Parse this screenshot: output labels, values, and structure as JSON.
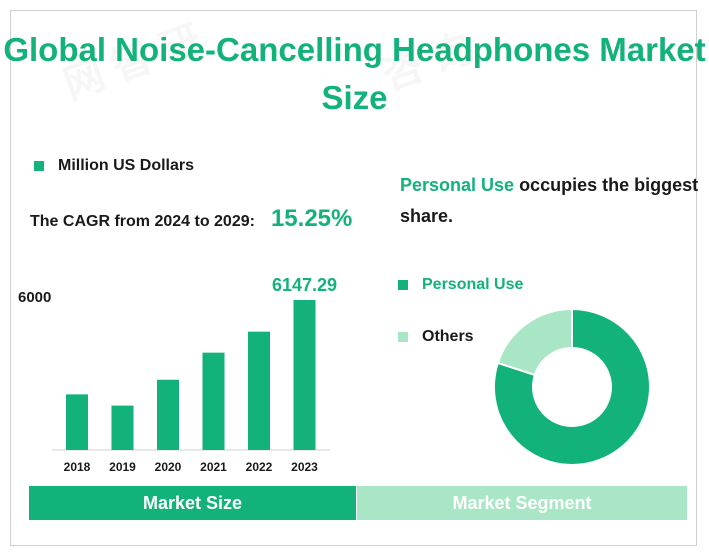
{
  "title": "Global Noise-Cancelling Headphones Market Size",
  "colors": {
    "accent": "#13b27a",
    "light": "#a9e6c5",
    "text": "#1a1a1a"
  },
  "legend_unit": "Million US Dollars",
  "cagr_label": "The CAGR from 2024 to 2029:",
  "cagr_value": "15.25%",
  "y_axis_label": "6000",
  "headline": {
    "highlight": "Personal Use",
    "rest": " occupies the biggest share."
  },
  "tabs": {
    "left": "Market Size",
    "right": "Market Segment"
  },
  "chart_data": [
    {
      "type": "bar",
      "categories": [
        "2018",
        "2019",
        "2020",
        "2021",
        "2022",
        "2023"
      ],
      "values": [
        2280,
        1820,
        2880,
        3990,
        4850,
        6147.29
      ],
      "data_labels": [
        "",
        "",
        "",
        "",
        "",
        "6147.29"
      ],
      "ylim": [
        0,
        6147.29
      ],
      "legend": "Million US Dollars",
      "grid": false
    },
    {
      "type": "pie",
      "donut": true,
      "labels": [
        "Personal Use",
        "Others"
      ],
      "values": [
        80,
        20
      ],
      "colors": [
        "#13b27a",
        "#a9e6c5"
      ]
    }
  ]
}
